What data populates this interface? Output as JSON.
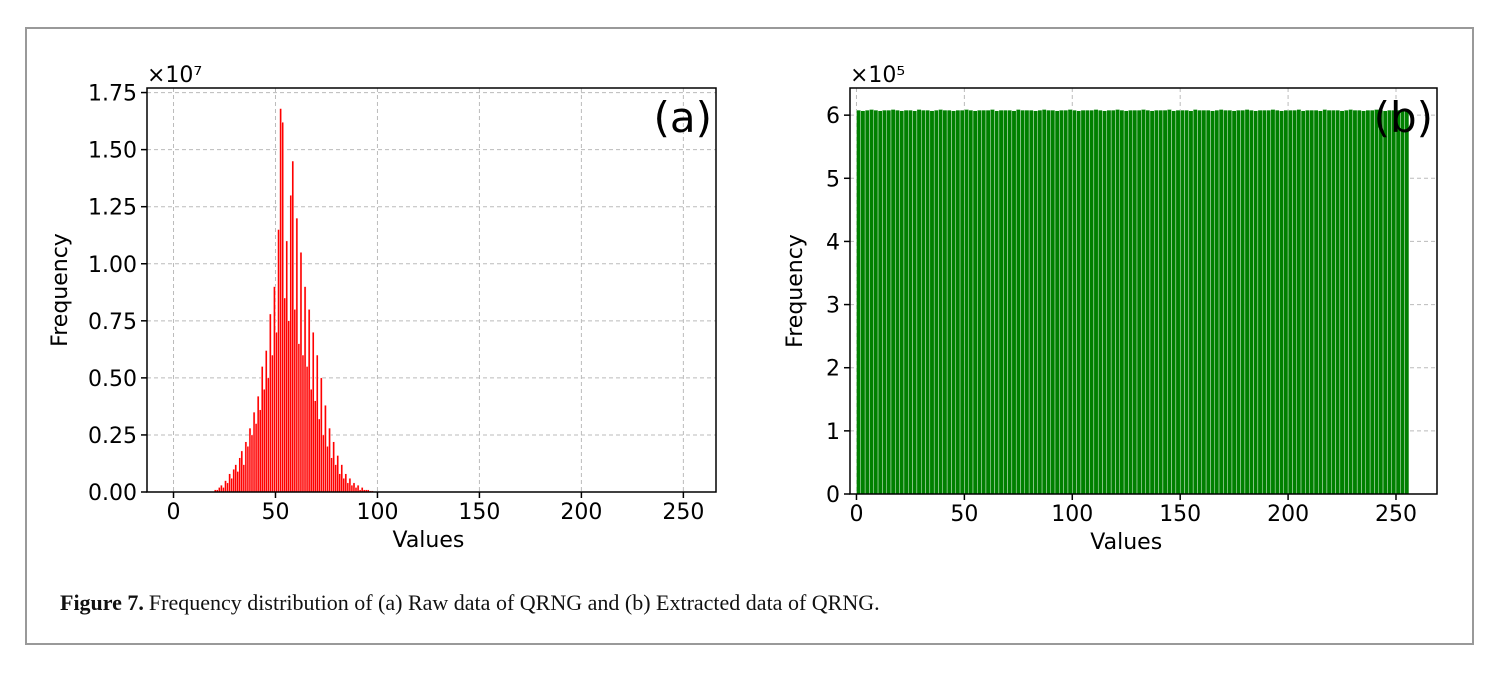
{
  "chart_data": [
    {
      "type": "histogram",
      "panel_label": "(a)",
      "offset_label": "×10⁷",
      "xlabel": "Values",
      "ylabel": "Frequency",
      "color": "#ff0000",
      "grid": true,
      "xlim": [
        -13,
        266
      ],
      "xticks": [
        0,
        50,
        100,
        150,
        200,
        250
      ],
      "ylim": [
        0,
        1.77
      ],
      "yticks": [
        {
          "value": 0,
          "label": "0.00"
        },
        0.25,
        {
          "value": 0.5,
          "label": "0.50"
        },
        0.75,
        {
          "value": 1,
          "label": "1.00"
        },
        1.25,
        {
          "value": 1.5,
          "label": "1.50"
        },
        1.75
      ],
      "bins": [
        20,
        21,
        22,
        23,
        24,
        25,
        26,
        27,
        28,
        29,
        30,
        31,
        32,
        33,
        34,
        35,
        36,
        37,
        38,
        39,
        40,
        41,
        42,
        43,
        44,
        45,
        46,
        47,
        48,
        49,
        50,
        51,
        52,
        53,
        54,
        55,
        56,
        57,
        58,
        59,
        60,
        61,
        62,
        63,
        64,
        65,
        66,
        67,
        68,
        69,
        70,
        71,
        72,
        73,
        74,
        75,
        76,
        77,
        78,
        79,
        80,
        81,
        82,
        83,
        84,
        85,
        86,
        87,
        88,
        89,
        90,
        91,
        92,
        93,
        94,
        95,
        96,
        97,
        98
      ],
      "values": [
        0.01,
        0.01,
        0.02,
        0.03,
        0.02,
        0.05,
        0.04,
        0.08,
        0.06,
        0.1,
        0.12,
        0.09,
        0.15,
        0.18,
        0.12,
        0.22,
        0.2,
        0.28,
        0.25,
        0.35,
        0.3,
        0.42,
        0.36,
        0.55,
        0.45,
        0.62,
        0.5,
        0.78,
        0.6,
        0.9,
        0.7,
        1.15,
        1.68,
        1.62,
        0.85,
        1.1,
        0.75,
        1.3,
        1.45,
        0.8,
        1.2,
        0.65,
        1.05,
        0.6,
        0.9,
        0.55,
        0.8,
        0.45,
        0.7,
        0.4,
        0.6,
        0.32,
        0.5,
        0.25,
        0.38,
        0.2,
        0.28,
        0.15,
        0.22,
        0.12,
        0.16,
        0.08,
        0.12,
        0.06,
        0.08,
        0.04,
        0.06,
        0.03,
        0.04,
        0.02,
        0.03,
        0.01,
        0.02,
        0.01,
        0.01,
        0.01,
        0.005,
        0.005
      ]
    },
    {
      "type": "histogram",
      "panel_label": "(b)",
      "offset_label": "×10⁵",
      "xlabel": "Values",
      "ylabel": "Frequency",
      "color": "#008000",
      "grid": true,
      "xlim": [
        -3,
        269
      ],
      "xticks": [
        0,
        50,
        100,
        150,
        200,
        250
      ],
      "ylim": [
        0,
        6.43
      ],
      "yticks": [
        0,
        1,
        2,
        3,
        4,
        5,
        6
      ],
      "bins": [
        0,
        2,
        4,
        6,
        8,
        10,
        12,
        14,
        16,
        18,
        20,
        22,
        24,
        26,
        28,
        30,
        32,
        34,
        36,
        38,
        40,
        42,
        44,
        46,
        48,
        50,
        52,
        54,
        56,
        58,
        60,
        62,
        64,
        66,
        68,
        70,
        72,
        74,
        76,
        78,
        80,
        82,
        84,
        86,
        88,
        90,
        92,
        94,
        96,
        98,
        100,
        102,
        104,
        106,
        108,
        110,
        112,
        114,
        116,
        118,
        120,
        122,
        124,
        126,
        128,
        130,
        132,
        134,
        136,
        138,
        140,
        142,
        144,
        146,
        148,
        150,
        152,
        154,
        156,
        158,
        160,
        162,
        164,
        166,
        168,
        170,
        172,
        174,
        176,
        178,
        180,
        182,
        184,
        186,
        188,
        190,
        192,
        194,
        196,
        198,
        200,
        202,
        204,
        206,
        208,
        210,
        212,
        214,
        216,
        218,
        220,
        222,
        224,
        226,
        228,
        230,
        232,
        234,
        236,
        238,
        240,
        242,
        244,
        246,
        248,
        250,
        252,
        254,
        256
      ],
      "values": [
        6.08,
        6.07,
        6.08,
        6.09,
        6.08,
        6.07,
        6.08,
        6.08,
        6.09,
        6.08,
        6.07,
        6.08,
        6.08,
        6.07,
        6.09,
        6.08,
        6.08,
        6.07,
        6.08,
        6.09,
        6.08,
        6.08,
        6.07,
        6.08,
        6.08,
        6.09,
        6.08,
        6.07,
        6.08,
        6.08,
        6.08,
        6.09,
        6.07,
        6.08,
        6.08,
        6.08,
        6.07,
        6.09,
        6.08,
        6.08,
        6.08,
        6.07,
        6.08,
        6.09,
        6.08,
        6.08,
        6.07,
        6.08,
        6.08,
        6.09,
        6.08,
        6.07,
        6.08,
        6.08,
        6.08,
        6.09,
        6.08,
        6.07,
        6.08,
        6.08,
        6.09,
        6.08,
        6.07,
        6.08,
        6.08,
        6.08,
        6.09,
        6.08,
        6.07,
        6.08,
        6.08,
        6.08,
        6.09,
        6.07,
        6.08,
        6.08,
        6.08,
        6.07,
        6.09,
        6.08,
        6.08,
        6.08,
        6.07,
        6.08,
        6.09,
        6.08,
        6.08,
        6.07,
        6.08,
        6.08,
        6.09,
        6.08,
        6.07,
        6.08,
        6.08,
        6.08,
        6.09,
        6.08,
        6.07,
        6.08,
        6.08,
        6.08,
        6.09,
        6.07,
        6.08,
        6.08,
        6.08,
        6.07,
        6.09,
        6.08,
        6.08,
        6.08,
        6.07,
        6.08,
        6.09,
        6.08,
        6.08,
        6.07,
        6.08,
        6.08,
        6.09,
        6.08,
        6.07,
        6.08,
        6.08,
        6.08,
        6.09,
        6.08
      ]
    }
  ],
  "caption": {
    "label": "Figure 7.",
    "text": "Frequency distribution of (a) Raw data of QRNG and (b) Extracted data of QRNG."
  }
}
